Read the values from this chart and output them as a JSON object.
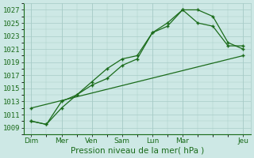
{
  "xlabel": "Pression niveau de la mer( hPa )",
  "bg_color": "#cde8e5",
  "grid_color": "#a8ccc8",
  "line_color": "#1a6b1a",
  "ylim": [
    1008,
    1028
  ],
  "yticks": [
    1009,
    1011,
    1013,
    1015,
    1017,
    1019,
    1021,
    1023,
    1025,
    1027
  ],
  "x_tick_labels": [
    "Dim",
    "Mer",
    "Ven",
    "Sam",
    "Lun",
    "Mar",
    "Jeu"
  ],
  "x_tick_positions": [
    0,
    2,
    4,
    6,
    8,
    10,
    14
  ],
  "series1_x": [
    0,
    1,
    2,
    3,
    4,
    5,
    6,
    7,
    8,
    9,
    10,
    11,
    12,
    13,
    14
  ],
  "series1_y": [
    1010,
    1009.5,
    1012,
    1014,
    1015.5,
    1016.5,
    1018.5,
    1019.5,
    1023.5,
    1024.5,
    1027,
    1027,
    1026,
    1022,
    1021
  ],
  "series2_x": [
    0,
    1,
    2,
    3,
    4,
    5,
    6,
    7,
    8,
    9,
    10,
    11,
    12,
    13,
    14
  ],
  "series2_y": [
    1010,
    1009.5,
    1013,
    1014,
    1016,
    1018,
    1019.5,
    1020,
    1023.5,
    1025,
    1027,
    1025,
    1024.5,
    1021.5,
    1021.5
  ],
  "series3_x": [
    0,
    14
  ],
  "series3_y": [
    1012,
    1020
  ],
  "font_color": "#1a6b1a",
  "font_size": 6.5,
  "xlabel_fontsize": 7.5,
  "marker_size": 3.0,
  "line_width": 0.9
}
